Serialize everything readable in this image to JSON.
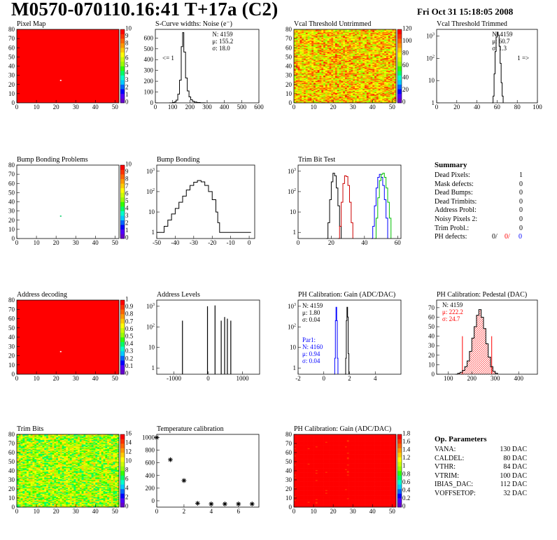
{
  "header": {
    "title": "M0570-070110.16:41 T+17a (C2)",
    "date": "Fri Oct 31 15:18:05 2008"
  },
  "colors": {
    "red": "#ff0000",
    "blue": "#0000ff",
    "green": "#00c000"
  },
  "chart_data": [
    {
      "id": "pixel-map",
      "type": "heatmap",
      "title": "Pixel Map",
      "xlim": [
        0,
        52
      ],
      "ylim": [
        0,
        80
      ],
      "xticks": [
        0,
        10,
        20,
        30,
        40,
        50
      ],
      "yticks": [
        0,
        10,
        20,
        30,
        40,
        50,
        60,
        70,
        80
      ],
      "zticks": [
        0,
        1,
        2,
        3,
        4,
        5,
        6,
        7,
        8,
        9,
        10
      ],
      "fill_value": 10,
      "dead_pixels": [
        {
          "x": 22,
          "y": 25
        }
      ]
    },
    {
      "id": "s-curve-noise",
      "type": "histogram",
      "title": "S-Curve widths: Noise (e⁻)",
      "xlim": [
        0,
        600
      ],
      "xticks": [
        0,
        100,
        200,
        300,
        400,
        500,
        600
      ],
      "ylim": [
        0,
        680
      ],
      "yticks": [
        0,
        100,
        200,
        300,
        400,
        500,
        600
      ],
      "stats": [
        "N: 4159",
        "μ: 155.2",
        "σ: 18.0"
      ],
      "annotation": "<= 1",
      "bins": [
        [
          80,
          0
        ],
        [
          100,
          3
        ],
        [
          110,
          8
        ],
        [
          120,
          25
        ],
        [
          130,
          80
        ],
        [
          140,
          210
        ],
        [
          150,
          520
        ],
        [
          158,
          650
        ],
        [
          165,
          470
        ],
        [
          175,
          230
        ],
        [
          185,
          110
        ],
        [
          195,
          55
        ],
        [
          205,
          28
        ],
        [
          215,
          14
        ],
        [
          225,
          7
        ],
        [
          240,
          3
        ],
        [
          260,
          1
        ],
        [
          290,
          0
        ]
      ]
    },
    {
      "id": "vcal-untrimmed",
      "type": "heatmap",
      "title": "Vcal Threshold Untrimmed",
      "xlim": [
        0,
        52
      ],
      "ylim": [
        0,
        80
      ],
      "xticks": [
        0,
        10,
        20,
        30,
        40,
        50
      ],
      "yticks": [
        0,
        10,
        20,
        30,
        40,
        50,
        60,
        70,
        80
      ],
      "zticks": [
        0,
        20,
        40,
        60,
        80,
        100,
        120
      ],
      "fill_value_range": [
        60,
        110
      ]
    },
    {
      "id": "vcal-trimmed",
      "type": "histogram",
      "title": "Vcal Threshold Trimmed",
      "log_y": true,
      "xlim": [
        0,
        100
      ],
      "xticks": [
        0,
        20,
        40,
        60,
        80,
        100
      ],
      "ylim": [
        1,
        2000
      ],
      "yticks": [
        1,
        10,
        100,
        1000
      ],
      "stats": [
        "N: 4159",
        "μ: 60.7",
        "σ: 1.3"
      ],
      "annotation": "1 =>",
      "bins": [
        [
          55,
          0
        ],
        [
          56,
          2
        ],
        [
          57,
          20
        ],
        [
          58,
          200
        ],
        [
          59,
          900
        ],
        [
          60,
          1500
        ],
        [
          61,
          1100
        ],
        [
          62,
          350
        ],
        [
          63,
          60
        ],
        [
          64,
          8
        ],
        [
          65,
          2
        ],
        [
          66,
          0
        ]
      ]
    },
    {
      "id": "bump-bonding-problems",
      "type": "heatmap",
      "title": "Bump Bonding Problems",
      "xlim": [
        0,
        52
      ],
      "ylim": [
        0,
        80
      ],
      "xticks": [
        0,
        10,
        20,
        30,
        40,
        50
      ],
      "yticks": [
        0,
        10,
        20,
        30,
        40,
        50,
        60,
        70,
        80
      ],
      "zticks": [
        0,
        1,
        2,
        3,
        4,
        5,
        6,
        7,
        8,
        9,
        10
      ],
      "hits": [
        {
          "x": 22,
          "y": 25
        }
      ]
    },
    {
      "id": "bump-bonding",
      "type": "histogram",
      "title": "Bump Bonding",
      "log_y": true,
      "xlim": [
        -50,
        3
      ],
      "xticks": [
        -50,
        -40,
        -30,
        -20,
        -10,
        0
      ],
      "ylim": [
        0.5,
        2000
      ],
      "yticks": [
        1,
        10,
        100,
        1000
      ],
      "bins": [
        [
          -50,
          1
        ],
        [
          -48,
          1
        ],
        [
          -46,
          2
        ],
        [
          -44,
          4
        ],
        [
          -42,
          8
        ],
        [
          -40,
          15
        ],
        [
          -38,
          30
        ],
        [
          -36,
          60
        ],
        [
          -34,
          120
        ],
        [
          -32,
          200
        ],
        [
          -30,
          290
        ],
        [
          -28,
          350
        ],
        [
          -26,
          300
        ],
        [
          -24,
          200
        ],
        [
          -22,
          100
        ],
        [
          -20,
          40
        ],
        [
          -18,
          10
        ],
        [
          -17,
          3
        ],
        [
          -16,
          1
        ],
        [
          1,
          1
        ]
      ]
    },
    {
      "id": "trim-bit-test",
      "type": "histogram",
      "title": "Trim Bit Test",
      "log_y": true,
      "xlim": [
        0,
        62
      ],
      "xticks": [
        0,
        20,
        40,
        60
      ],
      "ylim": [
        0.5,
        2000
      ],
      "yticks": [
        1,
        10,
        100,
        1000
      ],
      "series": [
        {
          "color": "#000000",
          "bins": [
            [
              17,
              0
            ],
            [
              18,
              3
            ],
            [
              19,
              40
            ],
            [
              20,
              300
            ],
            [
              21,
              800
            ],
            [
              22,
              600
            ],
            [
              23,
              150
            ],
            [
              24,
              20
            ],
            [
              25,
              2
            ],
            [
              26,
              0
            ]
          ]
        },
        {
          "color": "#cc0000",
          "bins": [
            [
              24,
              0
            ],
            [
              25,
              2
            ],
            [
              26,
              30
            ],
            [
              27,
              250
            ],
            [
              28,
              600
            ],
            [
              29,
              550
            ],
            [
              30,
              200
            ],
            [
              31,
              30
            ],
            [
              32,
              3
            ],
            [
              33,
              0
            ]
          ]
        },
        {
          "color": "#0000ff",
          "bins": [
            [
              44,
              0
            ],
            [
              45,
              2
            ],
            [
              46,
              20
            ],
            [
              47,
              150
            ],
            [
              48,
              500
            ],
            [
              49,
              700
            ],
            [
              50,
              500
            ],
            [
              51,
              200
            ],
            [
              52,
              40
            ],
            [
              53,
              5
            ],
            [
              54,
              0
            ]
          ]
        },
        {
          "color": "#00c000",
          "bins": [
            [
              46,
              0
            ],
            [
              47,
              5
            ],
            [
              48,
              50
            ],
            [
              49,
              350
            ],
            [
              50,
              700
            ],
            [
              51,
              800
            ],
            [
              52,
              500
            ],
            [
              53,
              150
            ],
            [
              54,
              30
            ],
            [
              55,
              5
            ],
            [
              56,
              0
            ]
          ]
        }
      ]
    },
    {
      "id": "address-decoding",
      "type": "heatmap",
      "title": "Address decoding",
      "xlim": [
        0,
        52
      ],
      "ylim": [
        0,
        80
      ],
      "xticks": [
        0,
        10,
        20,
        30,
        40,
        50
      ],
      "yticks": [
        0,
        10,
        20,
        30,
        40,
        50,
        60,
        70,
        80
      ],
      "zticks": [
        0,
        0.1,
        0.2,
        0.3,
        0.4,
        0.5,
        0.6,
        0.7,
        0.8,
        0.9,
        1
      ],
      "fill_value": 1,
      "dead_pixels": [
        {
          "x": 22,
          "y": 25
        }
      ]
    },
    {
      "id": "address-levels",
      "type": "histogram",
      "title": "Address Levels",
      "log_y": true,
      "xlim": [
        -1500,
        1500
      ],
      "xticks": [
        -1000,
        0,
        1000
      ],
      "ylim": [
        0.5,
        2000
      ],
      "yticks": [
        1,
        10,
        100,
        1000
      ],
      "peaks": [
        [
          -750,
          200
        ],
        [
          -20,
          1000
        ],
        [
          200,
          1100
        ],
        [
          380,
          200
        ],
        [
          480,
          300
        ],
        [
          560,
          250
        ],
        [
          660,
          200
        ]
      ]
    },
    {
      "id": "ph-gain",
      "type": "histogram",
      "title": "PH Calibration: Gain (ADC/DAC)",
      "log_y": true,
      "xlim": [
        -2,
        6
      ],
      "xticks": [
        -2,
        0,
        2,
        4
      ],
      "ylim": [
        0.5,
        2000
      ],
      "yticks": [
        1,
        10,
        100,
        1000
      ],
      "stats": [
        "N: 4159",
        "μ: 1.80",
        "σ: 0.04"
      ],
      "stats2": [
        "Par1:",
        "N: 4160",
        "μ: 0.94",
        "σ: 0.04"
      ],
      "series": [
        {
          "color": "#000000",
          "bins": [
            [
              1.65,
              0
            ],
            [
              1.7,
              3
            ],
            [
              1.75,
              200
            ],
            [
              1.8,
              900
            ],
            [
              1.85,
              300
            ],
            [
              1.9,
              5
            ],
            [
              1.95,
              0
            ]
          ]
        },
        {
          "color": "#0000ff",
          "bins": [
            [
              0.8,
              0
            ],
            [
              0.85,
              3
            ],
            [
              0.9,
              200
            ],
            [
              0.95,
              900
            ],
            [
              1.0,
              200
            ],
            [
              1.05,
              3
            ],
            [
              1.1,
              0
            ]
          ]
        }
      ]
    },
    {
      "id": "ph-pedestal",
      "type": "histogram",
      "title": "PH Calibration: Pedestal (DAC)",
      "xlim": [
        50,
        480
      ],
      "xticks": [
        100,
        200,
        300,
        400
      ],
      "ylim": [
        0,
        78
      ],
      "yticks": [
        0,
        10,
        20,
        30,
        40,
        50,
        60,
        70
      ],
      "stats": [
        "N: 4159",
        "μ: 222.2",
        "σ: 24.7"
      ],
      "bins": [
        [
          130,
          0
        ],
        [
          140,
          1
        ],
        [
          150,
          2
        ],
        [
          160,
          4
        ],
        [
          170,
          8
        ],
        [
          180,
          14
        ],
        [
          190,
          24
        ],
        [
          200,
          38
        ],
        [
          210,
          50
        ],
        [
          220,
          62
        ],
        [
          230,
          68
        ],
        [
          240,
          60
        ],
        [
          250,
          48
        ],
        [
          260,
          32
        ],
        [
          270,
          18
        ],
        [
          280,
          8
        ],
        [
          290,
          3
        ],
        [
          300,
          1
        ],
        [
          310,
          0
        ]
      ],
      "cut_lines": [
        160,
        285
      ]
    },
    {
      "id": "trim-bits",
      "type": "heatmap",
      "title": "Trim Bits",
      "xlim": [
        0,
        52
      ],
      "ylim": [
        0,
        80
      ],
      "xticks": [
        0,
        10,
        20,
        30,
        40,
        50
      ],
      "yticks": [
        0,
        10,
        20,
        30,
        40,
        50,
        60,
        70,
        80
      ],
      "zticks": [
        0,
        2,
        4,
        6,
        8,
        10,
        12,
        14,
        16
      ],
      "fill_value_range": [
        6,
        12
      ]
    },
    {
      "id": "temperature-calibration",
      "type": "scatter",
      "title": "Temperature calibration",
      "xlim": [
        0,
        7.5
      ],
      "xticks": [
        0,
        2,
        4,
        6
      ],
      "ylim": [
        -100,
        1050
      ],
      "yticks": [
        0,
        200,
        400,
        600,
        800,
        1000
      ],
      "x": [
        0,
        1,
        2,
        3,
        4,
        5,
        6,
        7
      ],
      "y": [
        1000,
        650,
        320,
        -40,
        -50,
        -50,
        -50,
        -50
      ]
    },
    {
      "id": "ph-gain-map",
      "type": "heatmap",
      "title": "PH Calibration: Gain (ADC/DAC)",
      "xlim": [
        0,
        52
      ],
      "ylim": [
        0,
        80
      ],
      "xticks": [
        0,
        10,
        20,
        30,
        40,
        50
      ],
      "yticks": [
        0,
        10,
        20,
        30,
        40,
        50,
        60,
        70,
        80
      ],
      "zticks": [
        0,
        0.2,
        0.4,
        0.6,
        0.8,
        1,
        1.2,
        1.4,
        1.6,
        1.8
      ],
      "fill_value_range": [
        1.5,
        1.95
      ]
    }
  ],
  "summary": {
    "heading": "Summary",
    "rows": [
      {
        "label": "Dead Pixels:",
        "value": "1"
      },
      {
        "label": "Mask defects:",
        "value": "0"
      },
      {
        "label": "Dead Bumps:",
        "value": "0"
      },
      {
        "label": "Dead Trimbits:",
        "value": "0"
      },
      {
        "label": "Address Probl:",
        "value": "0"
      },
      {
        "label": "Noisy Pixels 2:",
        "value": "0"
      },
      {
        "label": "Trim Probl.:",
        "value": "0"
      }
    ],
    "ph_defects": {
      "label": "PH defects:",
      "values": [
        "0/",
        "0/",
        "0"
      ]
    }
  },
  "op_params": {
    "heading": "Op. Parameters",
    "rows": [
      {
        "label": "VANA:",
        "value": "130 DAC"
      },
      {
        "label": "CALDEL:",
        "value": "80 DAC"
      },
      {
        "label": "VTHR:",
        "value": "84 DAC"
      },
      {
        "label": "VTRIM:",
        "value": "100 DAC"
      },
      {
        "label": "IBIAS_DAC:",
        "value": "112 DAC"
      },
      {
        "label": "VOFFSETOP:",
        "value": "32 DAC"
      }
    ]
  }
}
